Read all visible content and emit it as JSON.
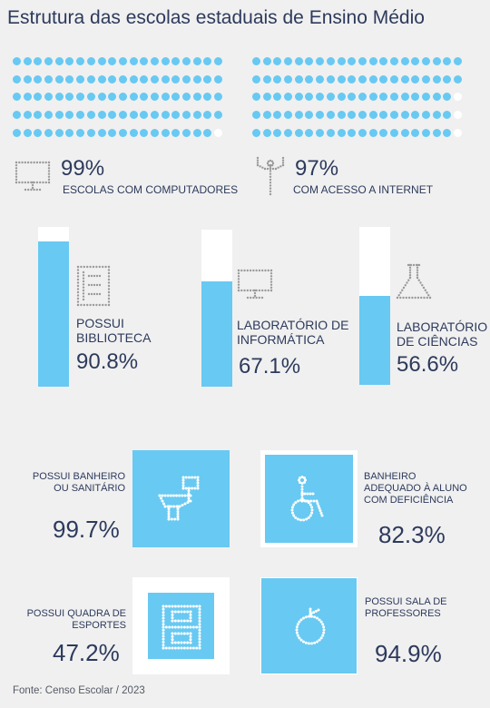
{
  "title": "Estrutura das escolas estaduais de Ensino Médio",
  "colors": {
    "accent": "#68c9f2",
    "text": "#2d3a5c",
    "empty": "#ffffff",
    "background": "#f0f0f0",
    "icon_gray": "#9a9a9a"
  },
  "source": "Fonte: Censo Escolar / 2023",
  "chart_data": [
    {
      "type": "waffle",
      "items": [
        {
          "label": "ESCOLAS COM COMPUTADORES",
          "value_label": "99%",
          "value": 99,
          "total_dots": 100,
          "icon": "computer-icon"
        },
        {
          "label": "COM ACESSO A INTERNET",
          "value_label": "97%",
          "value": 97,
          "total_dots": 100,
          "icon": "antenna-icon"
        }
      ]
    },
    {
      "type": "bar",
      "ylim": [
        0,
        100
      ],
      "items": [
        {
          "label": "POSSUI BIBLIOTECA",
          "value_label": "90.8%",
          "value": 90.8,
          "icon": "book-icon"
        },
        {
          "label": "LABORATÓRIO DE INFORMÁTICA",
          "value_label": "67.1%",
          "value": 67.1,
          "icon": "monitor-icon"
        },
        {
          "label": "LABORATÓRIO DE CIÊNCIAS",
          "value_label": "56.6%",
          "value": 56.6,
          "icon": "flask-icon"
        }
      ]
    },
    {
      "type": "area",
      "items": [
        {
          "label": "POSSUI BANHEIRO OU SANITÁRIO",
          "value_label": "99.7%",
          "value": 99.7,
          "icon": "toilet-icon"
        },
        {
          "label": "BANHEIRO ADEQUADO À ALUNO COM DEFICIÊNCIA",
          "value_label": "82.3%",
          "value": 82.3,
          "icon": "wheelchair-icon"
        },
        {
          "label": "POSSUI QUADRA DE ESPORTES",
          "value_label": "47.2%",
          "value": 47.2,
          "icon": "sports-court-icon"
        },
        {
          "label": "POSSUI SALA DE PROFESSORES",
          "value_label": "94.9%",
          "value": 94.9,
          "icon": "apple-icon"
        }
      ]
    }
  ]
}
